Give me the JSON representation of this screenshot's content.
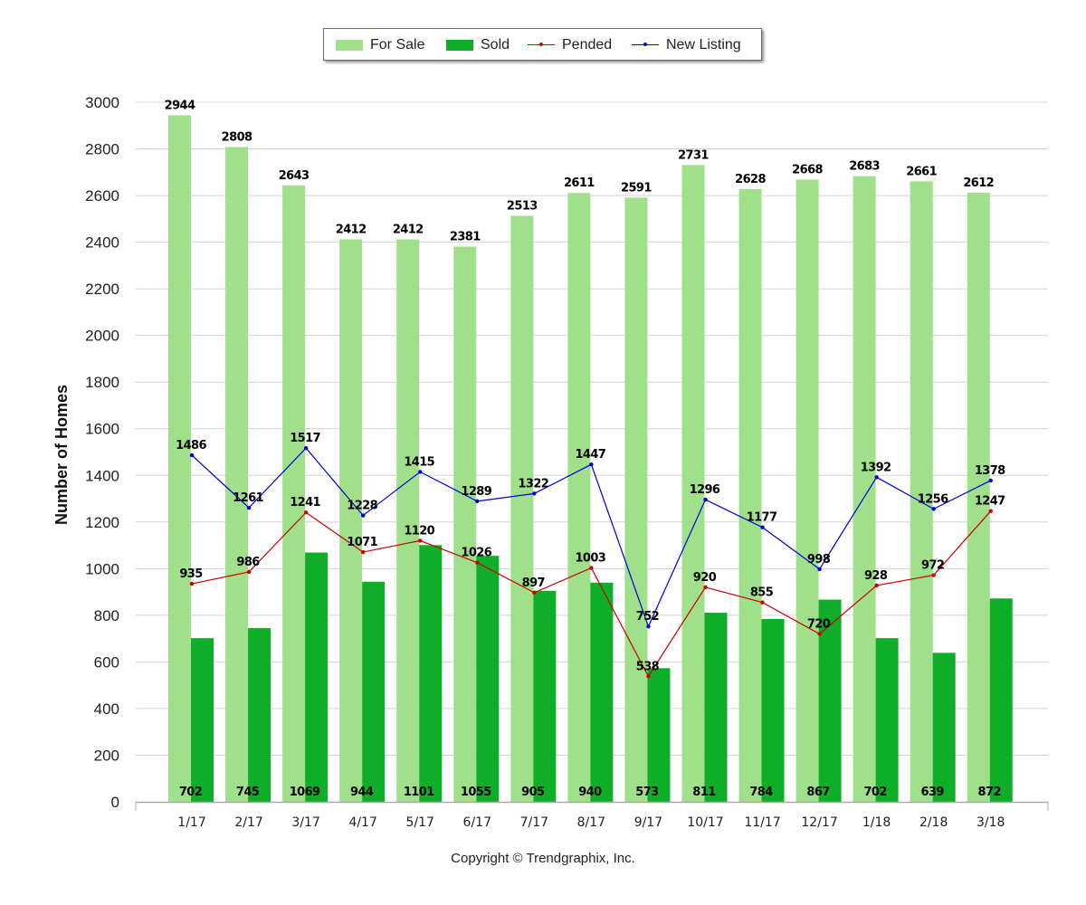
{
  "legend": {
    "for_sale": "For Sale",
    "sold": "Sold",
    "pended": "Pended",
    "new_listing": "New Listing"
  },
  "copyright": "Copyright © Trendgraphix, Inc.",
  "colors": {
    "for_sale": "#a0e08a",
    "sold": "#0fae28",
    "pended": "#cc0000",
    "new_listing": "#0000dd",
    "grid": "#d4d4d4"
  },
  "chart_data": {
    "type": "bar",
    "ylabel": "Number of Homes",
    "xlabel": "",
    "ylim": [
      0,
      3000
    ],
    "yticks": [
      0,
      200,
      400,
      600,
      800,
      1000,
      1200,
      1400,
      1600,
      1800,
      2000,
      2200,
      2400,
      2600,
      2800,
      3000
    ],
    "grid": true,
    "legend_position": "top-center",
    "categories": [
      "1/17",
      "2/17",
      "3/17",
      "4/17",
      "5/17",
      "6/17",
      "7/17",
      "8/17",
      "9/17",
      "10/17",
      "11/17",
      "12/17",
      "1/18",
      "2/18",
      "3/18"
    ],
    "series": [
      {
        "name": "For Sale",
        "type": "bar",
        "values": [
          2944,
          2808,
          2643,
          2412,
          2412,
          2381,
          2513,
          2611,
          2591,
          2731,
          2628,
          2668,
          2683,
          2661,
          2612
        ]
      },
      {
        "name": "Sold",
        "type": "bar",
        "values": [
          702,
          745,
          1069,
          944,
          1101,
          1055,
          905,
          940,
          573,
          811,
          784,
          867,
          702,
          639,
          872
        ]
      },
      {
        "name": "Pended",
        "type": "line",
        "values": [
          935,
          986,
          1241,
          1071,
          1120,
          1026,
          897,
          1003,
          538,
          920,
          855,
          720,
          928,
          972,
          1247
        ]
      },
      {
        "name": "New Listing",
        "type": "line",
        "values": [
          1486,
          1261,
          1517,
          1228,
          1415,
          1289,
          1322,
          1447,
          752,
          1296,
          1177,
          998,
          1392,
          1256,
          1378
        ]
      }
    ]
  }
}
